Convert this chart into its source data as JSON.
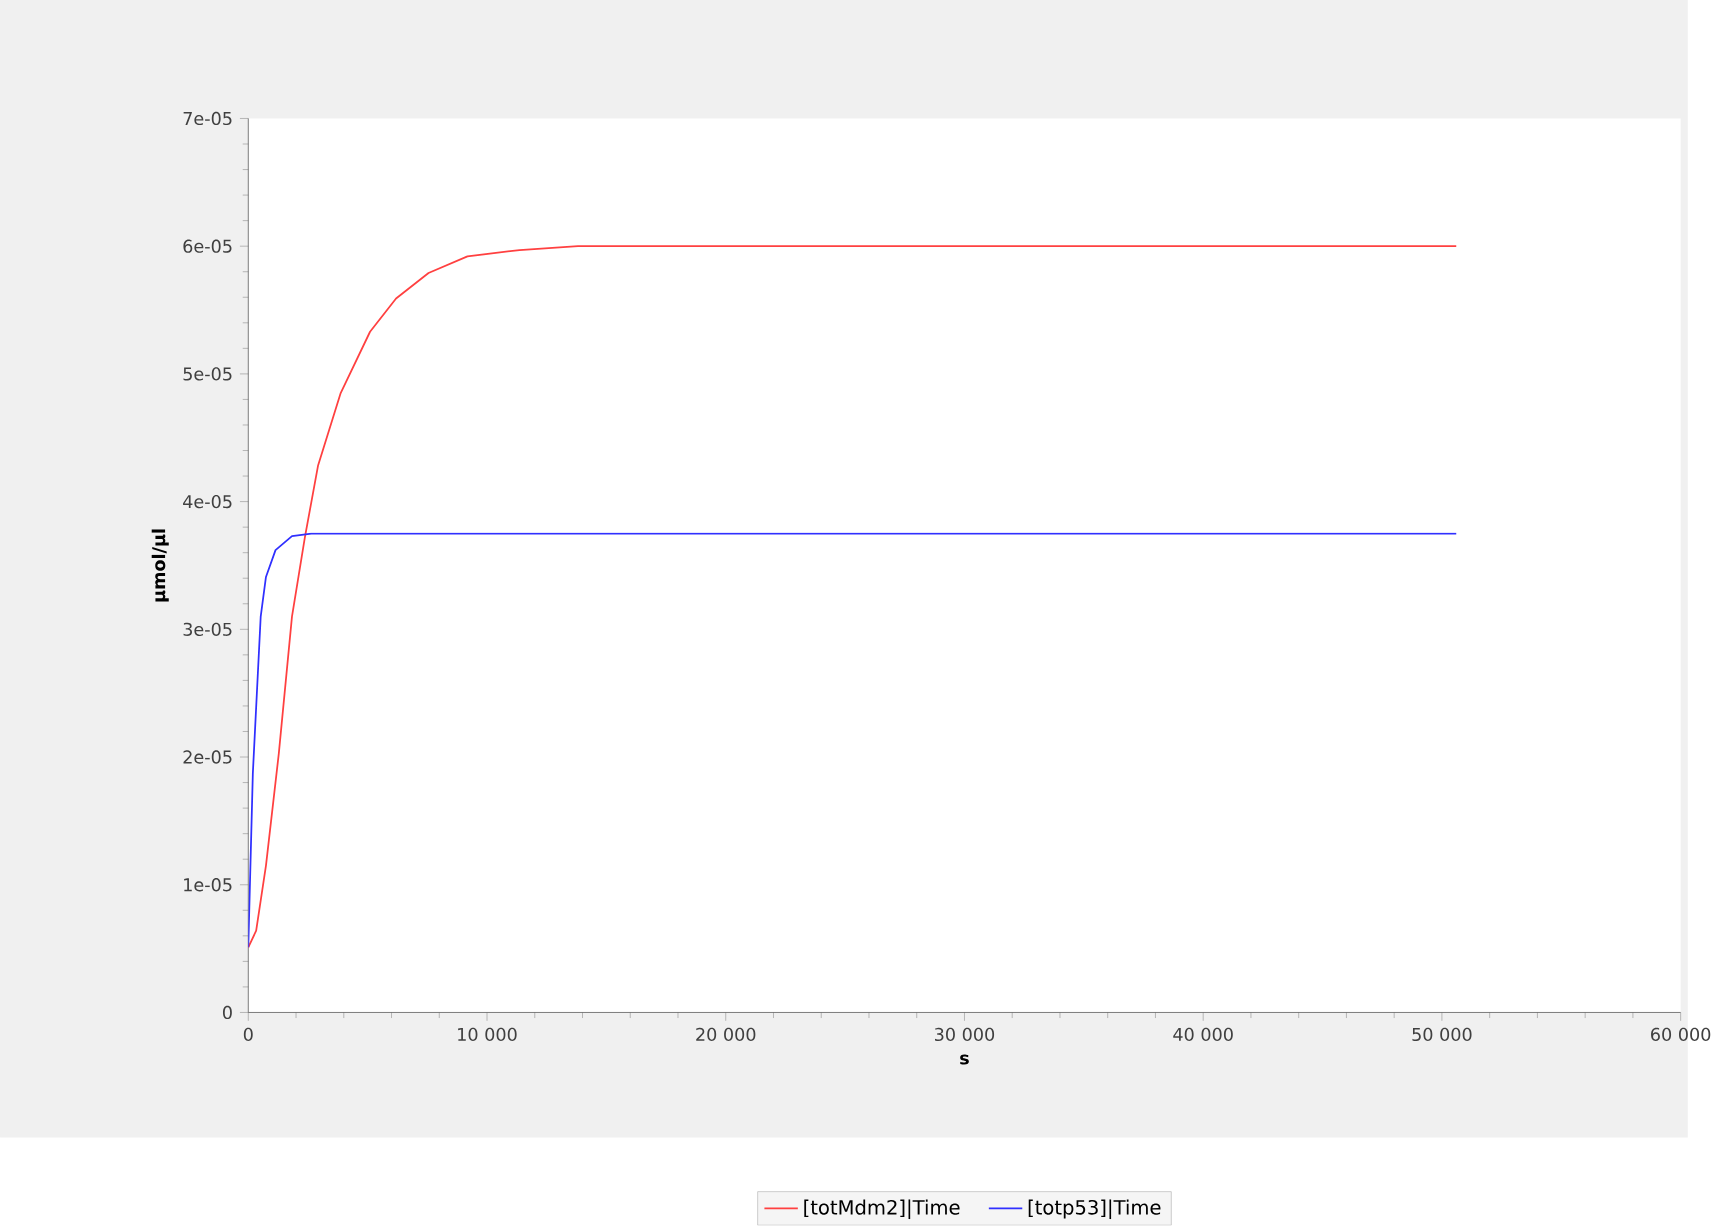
{
  "chart_data": {
    "type": "line",
    "xlabel": "s",
    "ylabel": "µmol/µl",
    "series": [
      {
        "name": "[totMdm2]|Time",
        "color": "#ff4040",
        "x": [
          0,
          330,
          740,
          1280,
          1830,
          2370,
          2920,
          3870,
          5100,
          6190,
          7550,
          9180,
          11360,
          13810,
          50600
        ],
        "values": [
          5.1e-06,
          6.4e-06,
          1.15e-05,
          2.03e-05,
          3.1e-05,
          3.72e-05,
          4.28e-05,
          4.85e-05,
          5.33e-05,
          5.59e-05,
          5.79e-05,
          5.92e-05,
          5.97e-05,
          6e-05,
          6e-05
        ]
      },
      {
        "name": "[totp53]|Time",
        "color": "#3030ff",
        "x": [
          0,
          190,
          520,
          740,
          1140,
          1830,
          2640,
          50600
        ],
        "values": [
          5.1e-06,
          1.87e-05,
          3.1e-05,
          3.41e-05,
          3.62e-05,
          3.73e-05,
          3.75e-05,
          3.75e-05
        ]
      }
    ],
    "xlim": [
      0,
      60000
    ],
    "ylim": [
      0,
      7e-05
    ],
    "xticks": [
      0,
      {
        "value": 10000,
        "label": "10 000"
      },
      {
        "value": 20000,
        "label": "20 000"
      },
      {
        "value": 30000,
        "label": "30 000"
      },
      {
        "value": 40000,
        "label": "40 000"
      },
      {
        "value": 50000,
        "label": "50 000"
      },
      {
        "value": 60000,
        "label": "60 000"
      }
    ],
    "yticks": [
      0,
      {
        "value": 1e-05,
        "label": "1e-05"
      },
      {
        "value": 2e-05,
        "label": "2e-05"
      },
      {
        "value": 3e-05,
        "label": "3e-05"
      },
      {
        "value": 4e-05,
        "label": "4e-05"
      },
      {
        "value": 5e-05,
        "label": "5e-05"
      },
      {
        "value": 6e-05,
        "label": "6e-05"
      },
      {
        "value": 7e-05,
        "label": "7e-05"
      }
    ],
    "grid": false,
    "legend": "bottom",
    "marker": "none",
    "line_style": "solid"
  }
}
